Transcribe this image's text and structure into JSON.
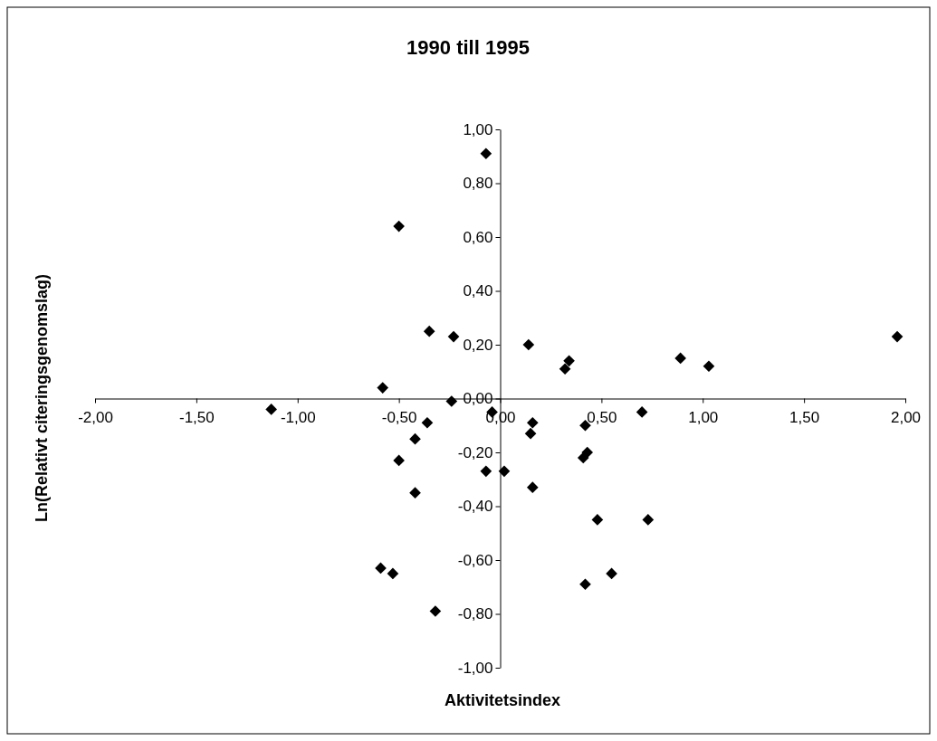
{
  "chart_data": {
    "type": "scatter",
    "title": "1990 till 1995",
    "xlabel": "Aktivitetsindex",
    "ylabel": "Ln(Relativt citeringsgenomslag)",
    "marker": "diamond",
    "grid": false,
    "xlim": [
      -2,
      2
    ],
    "xticks": [
      {
        "value": -2,
        "label": "-2,00"
      },
      {
        "value": -1.5,
        "label": "-1,50"
      },
      {
        "value": -1,
        "label": "-1,00"
      },
      {
        "value": -0.5,
        "label": "-0,50"
      },
      {
        "value": 0,
        "label": "0,00"
      },
      {
        "value": 0.5,
        "label": "0,50"
      },
      {
        "value": 1,
        "label": "1,00"
      },
      {
        "value": 1.5,
        "label": "1,50"
      },
      {
        "value": 2,
        "label": "2,00"
      }
    ],
    "ylim": [
      -1,
      1
    ],
    "yticks": [
      {
        "value": -1,
        "label": "-1,00"
      },
      {
        "value": -0.8,
        "label": "-0,80"
      },
      {
        "value": -0.6,
        "label": "-0,60"
      },
      {
        "value": -0.4,
        "label": "-0,40"
      },
      {
        "value": -0.2,
        "label": "-0,20"
      },
      {
        "value": 0,
        "label": "0,00"
      },
      {
        "value": 0.2,
        "label": "0,20"
      },
      {
        "value": 0.4,
        "label": "0,40"
      },
      {
        "value": 0.6,
        "label": "0,60"
      },
      {
        "value": 0.8,
        "label": "0,80"
      },
      {
        "value": 1,
        "label": "1,00"
      }
    ],
    "series": [
      {
        "color": "#000000",
        "x": [
          -0.07,
          -0.5,
          -0.35,
          -0.23,
          0.14,
          -0.58,
          -0.24,
          -1.13,
          -0.04,
          -0.36,
          0.16,
          0.15,
          -0.42,
          -0.5,
          -0.07,
          0.02,
          0.16,
          -0.42,
          -0.59,
          -0.53,
          -0.32,
          0.34,
          0.32,
          0.89,
          1.03,
          1.96,
          0.7,
          0.42,
          0.43,
          0.41,
          0.48,
          0.73,
          0.55,
          0.42
        ],
        "values": [
          0.91,
          0.64,
          0.25,
          0.23,
          0.2,
          0.04,
          -0.01,
          -0.04,
          -0.05,
          -0.09,
          -0.09,
          -0.13,
          -0.15,
          -0.23,
          -0.27,
          -0.27,
          -0.33,
          -0.35,
          -0.63,
          -0.65,
          -0.79,
          0.14,
          0.11,
          0.15,
          0.12,
          0.23,
          -0.05,
          -0.1,
          -0.2,
          -0.22,
          -0.45,
          -0.45,
          -0.65,
          -0.69
        ]
      }
    ]
  }
}
